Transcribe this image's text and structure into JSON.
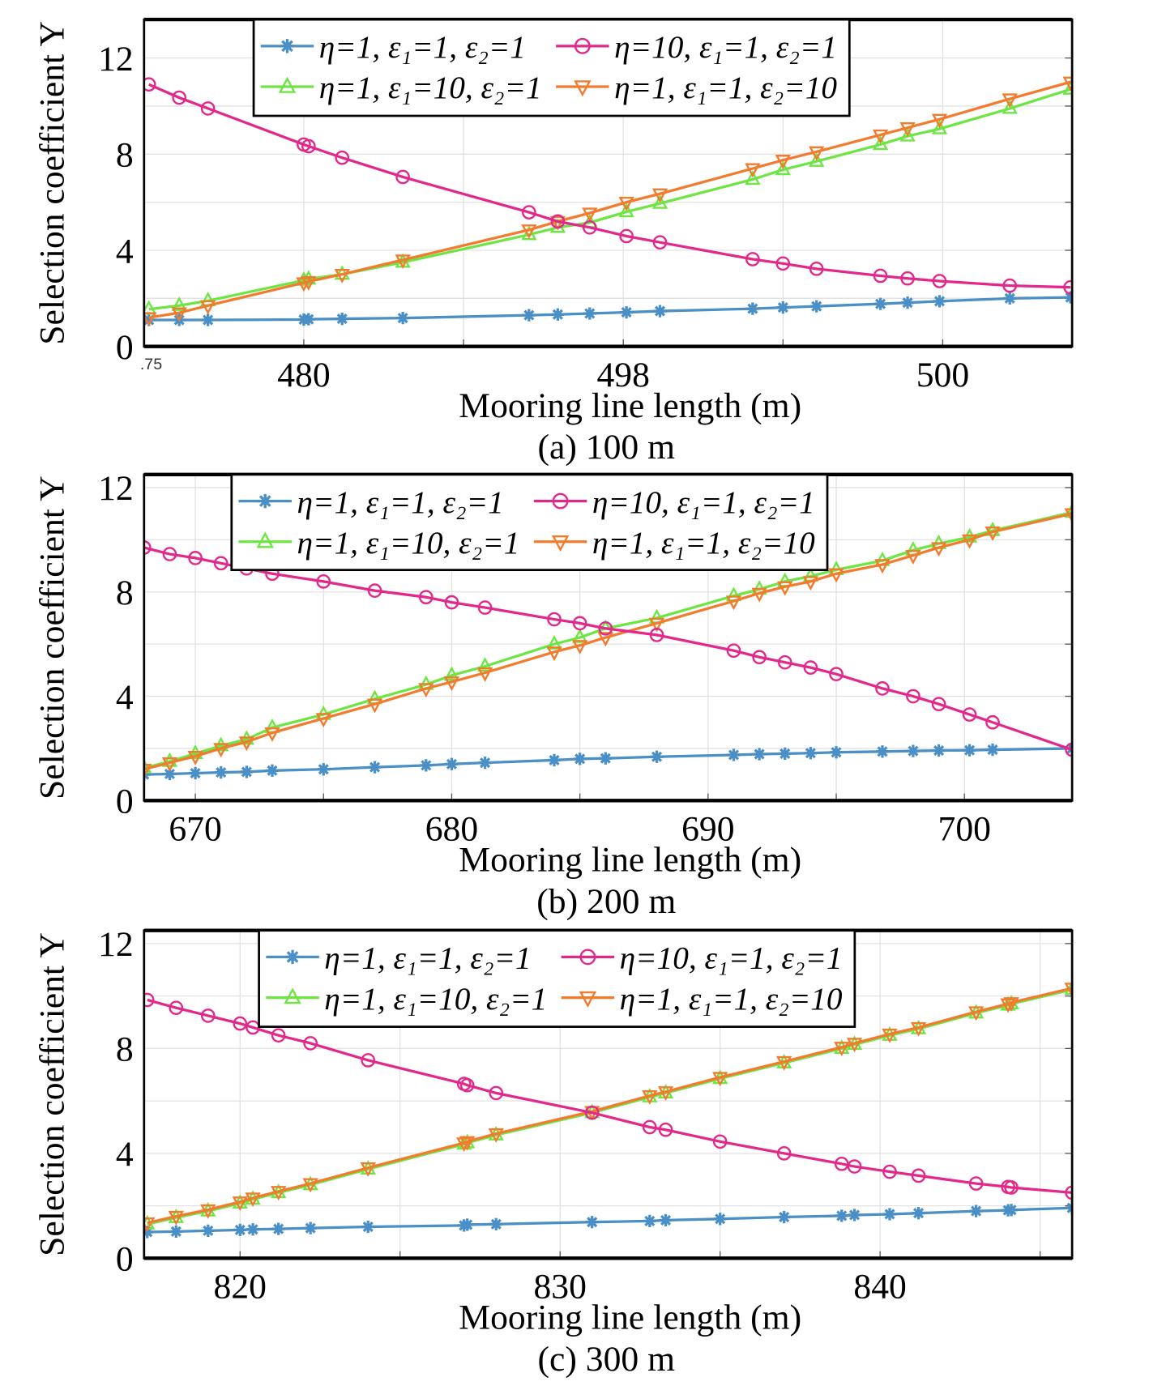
{
  "colors": {
    "blue": "#4a8fc6",
    "pink": "#e3288c",
    "green": "#6ee544",
    "orange": "#f27b2e",
    "grid": "#e2e2e2"
  },
  "chart_data": [
    {
      "type": "line",
      "caption": "(a) 100 m",
      "xlabel": "Mooring line length (m)",
      "ylabel": "Selection coefficient Y",
      "xlim": [
        0,
        5.81
      ],
      "ylim": [
        0,
        13.6
      ],
      "x_ticks": [
        0,
        1,
        2,
        3,
        4,
        5
      ],
      "x_tick_labels": [
        ".75",
        "480",
        "",
        "498",
        "",
        "500"
      ],
      "y_ticks": [
        0,
        2,
        4,
        6,
        8,
        10,
        12
      ],
      "y_tick_labels": [
        "0",
        "",
        "4",
        "",
        "8",
        "",
        "12"
      ],
      "grid": true,
      "legend": "top-center",
      "x": [
        0.03,
        0.22,
        0.4,
        1.0,
        1.03,
        1.24,
        1.62,
        2.41,
        2.59,
        2.79,
        3.02,
        3.23,
        3.81,
        4.0,
        4.21,
        4.61,
        4.78,
        4.98,
        5.42,
        5.8
      ],
      "series": [
        {
          "name": "η=1, ε₁=1, ε₂=1",
          "marker": "star",
          "color": "blue",
          "values": [
            1.1,
            1.1,
            1.1,
            1.12,
            1.13,
            1.15,
            1.18,
            1.3,
            1.33,
            1.37,
            1.42,
            1.47,
            1.57,
            1.62,
            1.67,
            1.77,
            1.82,
            1.88,
            2.0,
            2.04
          ]
        },
        {
          "name": "η=10, ε₁=1, ε₂=1",
          "marker": "circle",
          "color": "pink",
          "values": [
            10.9,
            10.35,
            9.9,
            8.4,
            8.33,
            7.85,
            7.05,
            5.58,
            5.2,
            4.95,
            4.59,
            4.33,
            3.63,
            3.45,
            3.23,
            2.94,
            2.83,
            2.72,
            2.53,
            2.46
          ]
        },
        {
          "name": "η=1, ε₁=10, ε₂=1",
          "marker": "triangle-up",
          "color": "green",
          "values": [
            1.55,
            1.7,
            1.9,
            2.75,
            2.8,
            3.0,
            3.5,
            4.65,
            4.95,
            5.15,
            5.6,
            5.95,
            6.95,
            7.35,
            7.7,
            8.4,
            8.75,
            9.05,
            9.9,
            10.7
          ]
        },
        {
          "name": "η=1, ε₁=1, ε₂=10",
          "marker": "triangle-down",
          "color": "orange",
          "values": [
            1.2,
            1.4,
            1.7,
            2.65,
            2.7,
            3.0,
            3.6,
            4.85,
            5.2,
            5.55,
            6.0,
            6.35,
            7.4,
            7.75,
            8.1,
            8.8,
            9.1,
            9.45,
            10.3,
            11.0
          ]
        }
      ]
    },
    {
      "type": "line",
      "caption": "(b) 200 m",
      "xlabel": "Mooring line length (m)",
      "ylabel": "Selection coefficient Y",
      "xlim": [
        668,
        704.2
      ],
      "ylim": [
        0,
        12.5
      ],
      "x_ticks": [
        670,
        675,
        680,
        685,
        690,
        695,
        700
      ],
      "x_tick_labels": [
        "670",
        "",
        "680",
        "",
        "690",
        "",
        "700"
      ],
      "y_ticks": [
        0,
        2,
        4,
        6,
        8,
        10,
        12
      ],
      "y_tick_labels": [
        "0",
        "",
        "4",
        "",
        "8",
        "",
        "12"
      ],
      "grid": true,
      "legend": "top-center",
      "x": [
        668,
        669,
        670,
        671,
        672,
        673,
        675,
        677,
        679,
        680,
        681.3,
        684,
        685,
        686,
        688,
        691,
        692,
        693,
        694,
        695,
        696.8,
        698,
        699,
        700.2,
        701.1,
        704.2
      ],
      "series": [
        {
          "name": "η=1, ε₁=1, ε₂=1",
          "marker": "star",
          "color": "blue",
          "values": [
            1.0,
            1.02,
            1.05,
            1.08,
            1.1,
            1.15,
            1.2,
            1.28,
            1.35,
            1.4,
            1.45,
            1.55,
            1.6,
            1.62,
            1.68,
            1.75,
            1.78,
            1.8,
            1.82,
            1.85,
            1.88,
            1.9,
            1.92,
            1.93,
            1.95,
            2.0
          ]
        },
        {
          "name": "η=10, ε₁=1, ε₂=1",
          "marker": "circle",
          "color": "pink",
          "values": [
            9.7,
            9.45,
            9.3,
            9.1,
            8.9,
            8.7,
            8.4,
            8.05,
            7.8,
            7.6,
            7.4,
            6.95,
            6.8,
            6.6,
            6.35,
            5.75,
            5.5,
            5.3,
            5.1,
            4.85,
            4.3,
            4.0,
            3.7,
            3.3,
            3.0,
            1.95
          ]
        },
        {
          "name": "η=1, ε₁=10, ε₂=1",
          "marker": "triangle-up",
          "color": "green",
          "values": [
            1.25,
            1.5,
            1.8,
            2.1,
            2.35,
            2.8,
            3.3,
            3.9,
            4.45,
            4.8,
            5.15,
            6.0,
            6.25,
            6.6,
            7.0,
            7.85,
            8.1,
            8.4,
            8.6,
            8.85,
            9.2,
            9.6,
            9.85,
            10.1,
            10.35,
            11.05
          ]
        },
        {
          "name": "η=1, ε₁=1, ε₂=10",
          "marker": "triangle-down",
          "color": "orange",
          "values": [
            1.2,
            1.45,
            1.7,
            2.0,
            2.25,
            2.6,
            3.15,
            3.7,
            4.3,
            4.55,
            4.9,
            5.7,
            5.95,
            6.25,
            6.8,
            7.65,
            7.95,
            8.2,
            8.4,
            8.7,
            9.05,
            9.4,
            9.7,
            10.0,
            10.3,
            11.0
          ]
        }
      ]
    },
    {
      "type": "line",
      "caption": "(c) 300 m",
      "xlabel": "Mooring line length (m)",
      "ylabel": "Selection coefficient Y",
      "xlim": [
        817,
        846
      ],
      "ylim": [
        0,
        12.5
      ],
      "x_ticks": [
        820,
        825,
        830,
        835,
        840,
        845
      ],
      "x_tick_labels": [
        "820",
        "",
        "830",
        "",
        "840",
        ""
      ],
      "y_ticks": [
        0,
        2,
        4,
        6,
        8,
        10,
        12
      ],
      "y_tick_labels": [
        "0",
        "",
        "4",
        "",
        "8",
        "",
        "12"
      ],
      "grid": true,
      "legend": "top-center",
      "x": [
        817.1,
        818,
        819,
        820,
        820.4,
        821.2,
        822.2,
        824,
        827,
        827.1,
        828,
        831,
        832.8,
        833.3,
        835,
        837,
        838.8,
        839.2,
        840.3,
        841.2,
        843,
        844,
        844.1,
        846
      ],
      "series": [
        {
          "name": "η=1, ε₁=1, ε₂=1",
          "marker": "star",
          "color": "blue",
          "values": [
            1.0,
            1.02,
            1.05,
            1.08,
            1.1,
            1.12,
            1.15,
            1.2,
            1.25,
            1.28,
            1.3,
            1.38,
            1.42,
            1.45,
            1.5,
            1.57,
            1.62,
            1.65,
            1.68,
            1.72,
            1.8,
            1.83,
            1.84,
            1.92
          ]
        },
        {
          "name": "η=10, ε₁=1, ε₂=1",
          "marker": "circle",
          "color": "pink",
          "values": [
            9.85,
            9.55,
            9.25,
            8.95,
            8.8,
            8.5,
            8.2,
            7.55,
            6.65,
            6.6,
            6.3,
            5.55,
            5.0,
            4.9,
            4.45,
            4.0,
            3.6,
            3.5,
            3.3,
            3.15,
            2.85,
            2.72,
            2.7,
            2.5
          ]
        },
        {
          "name": "η=1, ε₁=10, ε₂=1",
          "marker": "triangle-up",
          "color": "green",
          "values": [
            1.3,
            1.55,
            1.8,
            2.1,
            2.25,
            2.5,
            2.8,
            3.4,
            4.35,
            4.4,
            4.7,
            5.55,
            6.15,
            6.3,
            6.85,
            7.45,
            8.0,
            8.15,
            8.5,
            8.75,
            9.35,
            9.65,
            9.7,
            10.25
          ]
        },
        {
          "name": "η=1, ε₁=1, ε₂=10",
          "marker": "triangle-down",
          "color": "orange",
          "values": [
            1.35,
            1.6,
            1.85,
            2.15,
            2.3,
            2.55,
            2.85,
            3.45,
            4.4,
            4.45,
            4.75,
            5.6,
            6.2,
            6.35,
            6.9,
            7.5,
            8.05,
            8.2,
            8.55,
            8.8,
            9.4,
            9.7,
            9.75,
            10.3
          ]
        }
      ]
    }
  ]
}
